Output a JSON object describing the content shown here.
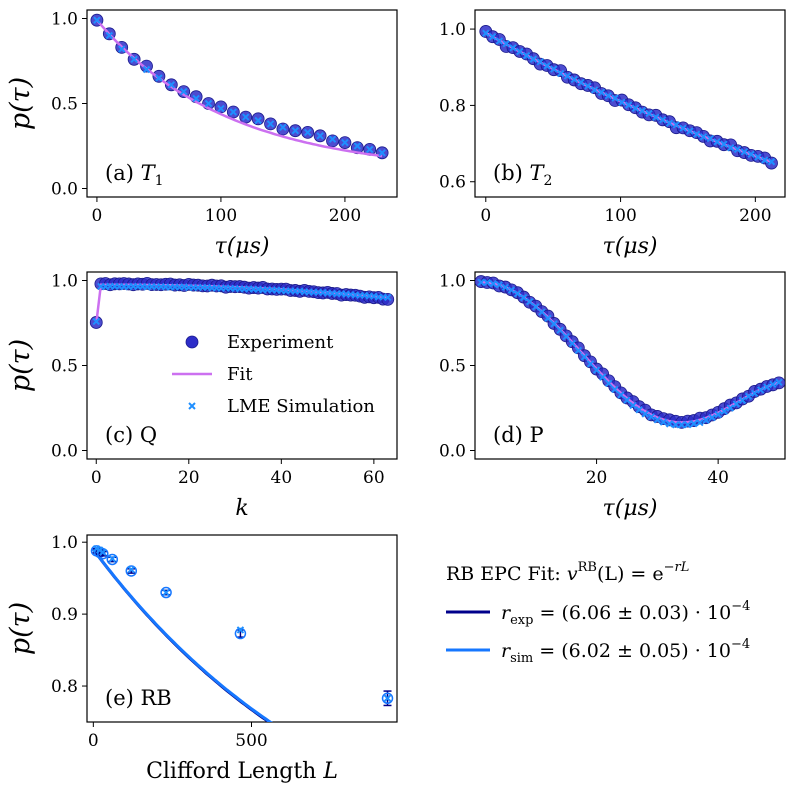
{
  "colors": {
    "experiment": "#2d2dc8",
    "experiment_edge": "#1a1a8c",
    "fit": "#cc70f0",
    "simulation": "#1f8fff",
    "rb_exp": "#00008b",
    "rb_sim": "#1677ff"
  },
  "chart_data": [
    {
      "id": "a",
      "type": "scatter",
      "label": "(a) T",
      "label_sub": "1",
      "xlabel": "τ(μs)",
      "ylabel": "p(τ)",
      "xlim": [
        -8,
        242
      ],
      "ylim": [
        -0.05,
        1.05
      ],
      "xticks": [
        0,
        100,
        200
      ],
      "yticks": [
        0.0,
        0.5,
        1.0
      ],
      "xtick_labels": [
        "0",
        "100",
        "200"
      ],
      "ytick_labels": [
        "0.0",
        "0.5",
        "1.0"
      ],
      "series": [
        {
          "name": "Experiment",
          "x": [
            0,
            10,
            20,
            30,
            40,
            50,
            60,
            70,
            80,
            90,
            100,
            110,
            120,
            130,
            140,
            150,
            160,
            170,
            180,
            190,
            200,
            210,
            220,
            230
          ],
          "y": [
            0.99,
            0.91,
            0.83,
            0.76,
            0.72,
            0.66,
            0.61,
            0.57,
            0.54,
            0.5,
            0.48,
            0.45,
            0.42,
            0.41,
            0.38,
            0.35,
            0.34,
            0.33,
            0.31,
            0.28,
            0.27,
            0.24,
            0.23,
            0.21
          ]
        },
        {
          "name": "Fit",
          "kind": "exp_decay",
          "x0": 0,
          "x1": 230,
          "a": 0.9,
          "tau": 105,
          "c": 0.09
        },
        {
          "name": "LME Simulation",
          "x": [
            0,
            10,
            20,
            30,
            40,
            50,
            60,
            70,
            80,
            90,
            100,
            110,
            120,
            130,
            140,
            150,
            160,
            170,
            180,
            190,
            200,
            210,
            220,
            230
          ],
          "y": [
            0.99,
            0.9,
            0.82,
            0.76,
            0.7,
            0.65,
            0.61,
            0.57,
            0.53,
            0.5,
            0.47,
            0.45,
            0.42,
            0.4,
            0.38,
            0.36,
            0.34,
            0.33,
            0.31,
            0.29,
            0.27,
            0.25,
            0.23,
            0.21
          ]
        }
      ]
    },
    {
      "id": "b",
      "type": "scatter",
      "label": "(b) T",
      "label_sub": "2",
      "xlabel": "τ(μs)",
      "ylabel": "",
      "xlim": [
        -8,
        222
      ],
      "ylim": [
        0.56,
        1.05
      ],
      "xticks": [
        0,
        100,
        200
      ],
      "yticks": [
        0.6,
        0.8,
        1.0
      ],
      "xtick_labels": [
        "0",
        "100",
        "200"
      ],
      "ytick_labels": [
        "0.6",
        "0.8",
        "1.0"
      ],
      "series": [
        {
          "name": "Experiment",
          "kind": "exp_noise",
          "x0": 0,
          "x1": 212,
          "n": 43,
          "a": 0.9,
          "tau": 450,
          "c": 0.09,
          "noise": 0.006
        },
        {
          "name": "Fit",
          "kind": "exp_decay",
          "x0": 0,
          "x1": 212,
          "a": 0.9,
          "tau": 450,
          "c": 0.09
        },
        {
          "name": "LME Simulation",
          "kind": "exp_noise",
          "x0": 0,
          "x1": 212,
          "n": 43,
          "a": 0.9,
          "tau": 450,
          "c": 0.09,
          "noise": 0.002
        }
      ]
    },
    {
      "id": "c",
      "type": "scatter",
      "label": "(c) Q",
      "label_sub": "",
      "xlabel": "k",
      "ylabel": "p(τ)",
      "xlim": [
        -2,
        65
      ],
      "ylim": [
        -0.05,
        1.05
      ],
      "xticks": [
        0,
        20,
        40,
        60
      ],
      "yticks": [
        0.0,
        0.5,
        1.0
      ],
      "xtick_labels": [
        "0",
        "20",
        "40",
        "60"
      ],
      "ytick_labels": [
        "0.0",
        "0.5",
        "1.0"
      ],
      "legend": {
        "placement": "center-left",
        "entries": [
          "Experiment",
          "Fit",
          "LME Simulation"
        ]
      },
      "series": [
        {
          "name": "Experiment",
          "kind": "plateau",
          "x0": 0,
          "x1": 63,
          "n": 64,
          "start": 0.75,
          "top": 0.98,
          "end": 0.89,
          "noise": 0.005
        },
        {
          "name": "Fit",
          "kind": "plateau",
          "x0": 0,
          "x1": 63,
          "n": 64,
          "start": 0.75,
          "top": 0.975,
          "end": 0.9,
          "noise": 0
        },
        {
          "name": "LME Simulation",
          "kind": "plateau",
          "x0": 0,
          "x1": 63,
          "n": 64,
          "start": 0.76,
          "top": 0.965,
          "end": 0.9,
          "noise": 0.002
        }
      ]
    },
    {
      "id": "d",
      "type": "scatter",
      "label": "(d) P",
      "label_sub": "",
      "xlabel": "τ(μs)",
      "ylabel": "",
      "xlim": [
        0,
        51
      ],
      "ylim": [
        -0.05,
        1.05
      ],
      "xticks": [
        20,
        40
      ],
      "yticks": [
        0.0,
        0.5,
        1.0
      ],
      "xtick_labels": [
        "20",
        "40"
      ],
      "ytick_labels": [
        "0.0",
        "0.5",
        "1.0"
      ],
      "series": [
        {
          "name": "Experiment",
          "kind": "cosine_dip",
          "x0": 1,
          "x1": 50,
          "n": 50,
          "top": 0.99,
          "min": 0.17,
          "xmin": 34,
          "end": 0.4,
          "noise": 0.006
        },
        {
          "name": "Fit",
          "kind": "cosine_dip",
          "x0": 1,
          "x1": 50,
          "n": 120,
          "top": 0.99,
          "min": 0.165,
          "xmin": 34,
          "end": 0.4,
          "noise": 0
        },
        {
          "name": "LME Simulation",
          "kind": "cosine_dip",
          "x0": 1,
          "x1": 50,
          "n": 50,
          "top": 0.99,
          "min": 0.15,
          "xmin": 34,
          "end": 0.4,
          "noise": 0.002
        }
      ]
    },
    {
      "id": "e",
      "type": "line",
      "label": "(e) RB",
      "label_sub": "",
      "xlabel": "Clifford Length L",
      "ylabel": "p(τ)",
      "xlim": [
        -20,
        960
      ],
      "ylim": [
        0.75,
        1.01
      ],
      "xticks": [
        0,
        500
      ],
      "yticks": [
        0.8,
        0.9,
        1.0
      ],
      "xtick_labels": [
        "0",
        "500"
      ],
      "ytick_labels": [
        "0.8",
        "0.9",
        "1.0"
      ],
      "series": [
        {
          "name": "r_exp",
          "kind": "rb_fit",
          "r": 0.000606,
          "x0": 0,
          "x1": 930
        },
        {
          "name": "r_sim",
          "kind": "rb_fit",
          "r": 0.000602,
          "x0": 0,
          "x1": 930
        },
        {
          "name": "Experiment",
          "x": [
            10,
            20,
            30,
            60,
            120,
            230,
            465,
            930
          ],
          "y": [
            0.988,
            0.986,
            0.984,
            0.976,
            0.96,
            0.93,
            0.873,
            0.783
          ],
          "err": [
            0.003,
            0.003,
            0.003,
            0.003,
            0.003,
            0.003,
            0.005,
            0.01
          ]
        },
        {
          "name": "LME Simulation",
          "x": [
            10,
            20,
            30,
            60,
            120,
            230,
            465,
            930
          ],
          "y": [
            0.991,
            0.989,
            0.986,
            0.977,
            0.962,
            0.93,
            0.878,
            0.783
          ]
        }
      ]
    }
  ],
  "rb_legend": {
    "title": "RB EPC Fit: ",
    "formula": "v",
    "formula_sup": "RB",
    "formula_mid": "(L) = e",
    "formula_exp": "−rL",
    "entries": [
      {
        "symbol": "r",
        "sub": "exp",
        "value": " = (6.06 ± 0.03) · 10",
        "exp": "−4"
      },
      {
        "symbol": "r",
        "sub": "sim",
        "value": " = (6.02 ± 0.05) · 10",
        "exp": "−4"
      }
    ]
  }
}
